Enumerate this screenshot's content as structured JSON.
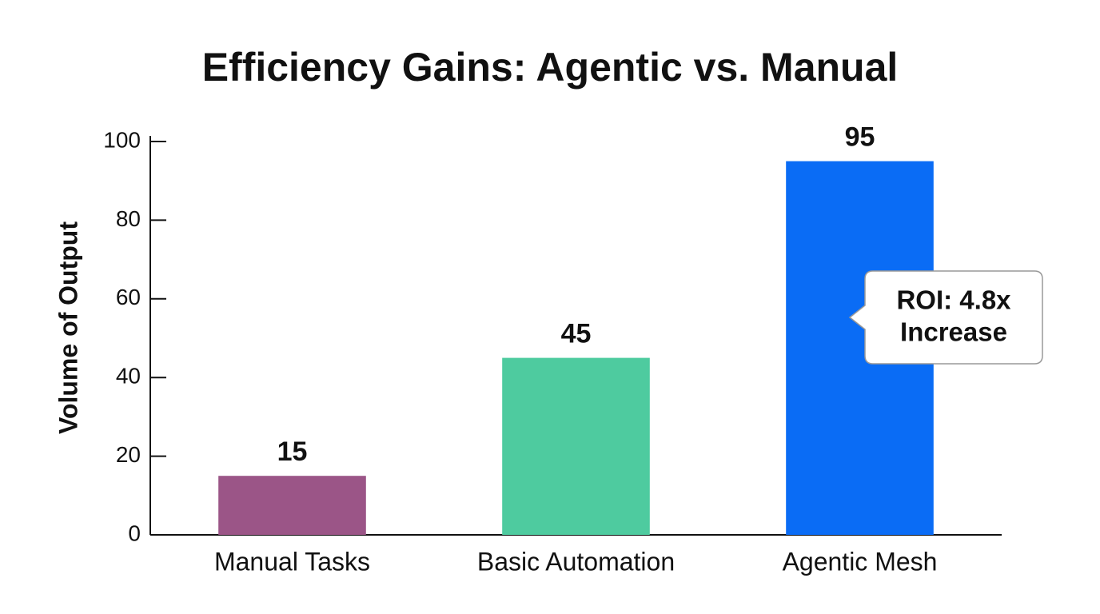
{
  "chart_data": {
    "type": "bar",
    "title": "Efficiency Gains: Agentic vs. Manual",
    "y_label": "Volume of Output",
    "categories": [
      "Manual Tasks",
      "Basic Automation",
      "Agentic Mesh"
    ],
    "values": [
      15,
      45,
      95
    ],
    "colors": [
      "#9b5587",
      "#4ecb9f",
      "#0a6cf5"
    ],
    "ylim": [
      0,
      100
    ],
    "yticks": [
      0,
      20,
      40,
      60,
      80,
      100
    ],
    "grid": false,
    "annotation": [
      "ROI: 4.8x",
      "Increase"
    ]
  }
}
